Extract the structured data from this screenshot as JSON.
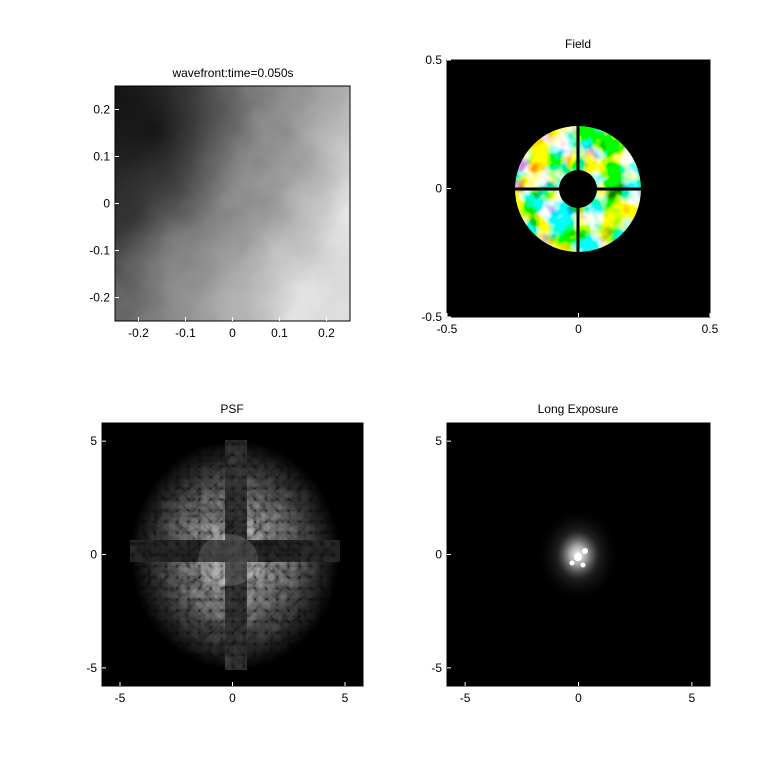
{
  "chart_data": [
    {
      "type": "heatmap",
      "title": "wavefront:time=0.050s",
      "colormap": "gray",
      "xlim": [
        -0.25,
        0.25
      ],
      "ylim": [
        -0.25,
        0.25
      ],
      "xticks": [
        -0.2,
        -0.1,
        0,
        0.1,
        0.2
      ],
      "xtick_labels": [
        "-0.2",
        "-0.1",
        "0",
        "0.1",
        "0.2"
      ],
      "yticks": [
        0.2,
        0.1,
        0,
        -0.1,
        -0.2
      ],
      "ytick_labels": [
        "0.2",
        "0.1",
        "0",
        "-0.1",
        "-0.2"
      ]
    },
    {
      "type": "heatmap",
      "title": "Field",
      "colormap": "jet",
      "background": "#000000",
      "aperture_outer_radius": 0.25,
      "aperture_inner_radius": 0.06,
      "xlim": [
        -0.5,
        0.5
      ],
      "ylim": [
        -0.5,
        0.5
      ],
      "xticks": [
        -0.5,
        0,
        0.5
      ],
      "xtick_labels": [
        "-0.5",
        "0",
        "0.5"
      ],
      "yticks": [
        0.5,
        0,
        -0.5
      ],
      "ytick_labels": [
        "0.5",
        "0",
        "-0.5"
      ]
    },
    {
      "type": "heatmap",
      "title": "PSF",
      "colormap": "gray",
      "background": "#000000",
      "xlim": [
        -5.8,
        5.8
      ],
      "ylim": [
        -5.8,
        5.8
      ],
      "xticks": [
        -5,
        0,
        5
      ],
      "xtick_labels": [
        "-5",
        "0",
        "5"
      ],
      "yticks": [
        5,
        0,
        -5
      ],
      "ytick_labels": [
        "5",
        "0",
        "-5"
      ]
    },
    {
      "type": "heatmap",
      "title": "Long Exposure",
      "colormap": "gray",
      "background": "#000000",
      "xlim": [
        -5.8,
        5.8
      ],
      "ylim": [
        -5.8,
        5.8
      ],
      "xticks": [
        -5,
        0,
        5
      ],
      "xtick_labels": [
        "-5",
        "0",
        "5"
      ],
      "yticks": [
        5,
        0,
        -5
      ],
      "ytick_labels": [
        "5",
        "0",
        "-5"
      ]
    }
  ]
}
